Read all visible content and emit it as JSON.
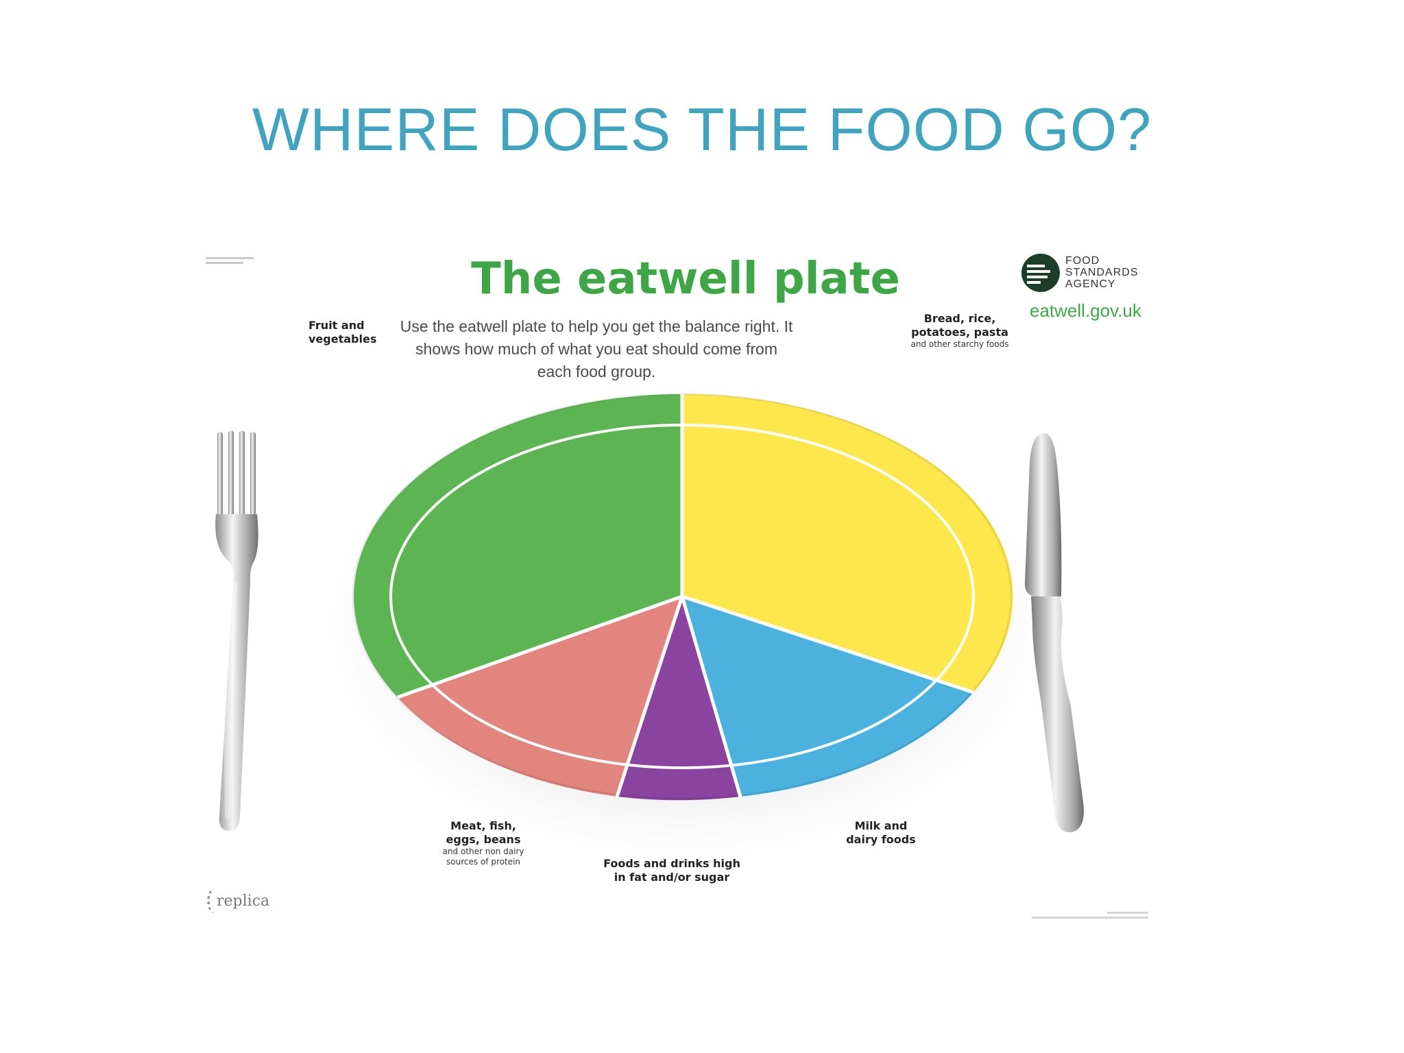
{
  "slide": {
    "title": "WHERE DOES THE FOOD GO?"
  },
  "poster": {
    "title": "The eatwell plate",
    "subtitle": "Use the eatwell plate to help you get the balance right. It shows how much of what you eat should come from each food group.",
    "logo": {
      "line1": "FOOD",
      "line2": "STANDARDS",
      "line3": "AGENCY",
      "url": "eatwell.gov.uk"
    },
    "replica": "replica",
    "segments": [
      {
        "id": "fruit-veg",
        "label": "Fruit and vegetables",
        "sublabel": "",
        "color": "#5cb452"
      },
      {
        "id": "starchy",
        "label": "Bread, rice, potatoes, pasta",
        "sublabel": "and other starchy foods",
        "color": "#fde74c"
      },
      {
        "id": "dairy",
        "label": "Milk and dairy foods",
        "sublabel": "",
        "color": "#4bb2df"
      },
      {
        "id": "fat-sugar",
        "label": "Foods and drinks high in fat and/or sugar",
        "sublabel": "",
        "color": "#8a44a0"
      },
      {
        "id": "protein",
        "label": "Meat, fish, eggs, beans",
        "sublabel": "and other non dairy sources of protein",
        "color": "#e1857e"
      }
    ],
    "icons": [
      "fork-icon",
      "knife-icon",
      "fsa-logo-icon"
    ]
  }
}
